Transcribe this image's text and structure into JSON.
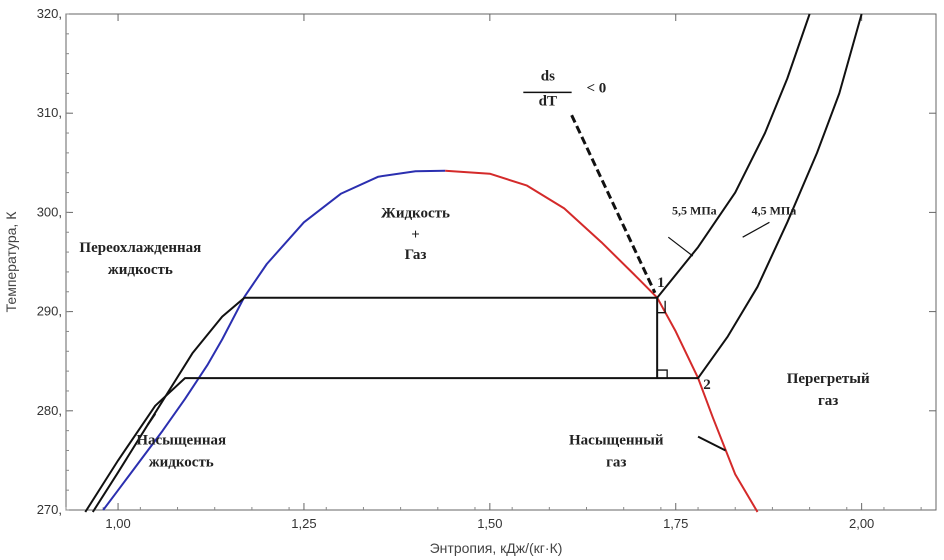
{
  "chart_data": {
    "type": "line",
    "title": "",
    "xlabel": "Энтропия, кДж/(кг·К)",
    "ylabel": "Температура, К",
    "xlim": [
      0.93,
      2.1
    ],
    "ylim": [
      270,
      320
    ],
    "x_ticks": [
      1.0,
      1.25,
      1.5,
      1.75,
      2.0
    ],
    "x_tick_labels": [
      "1,00",
      "1,25",
      "1,50",
      "1,75",
      "2,00"
    ],
    "y_ticks": [
      270,
      280,
      290,
      300,
      310,
      320
    ],
    "y_tick_labels": [
      "270,",
      "280,",
      "290,",
      "300,",
      "310,",
      "320,"
    ],
    "grid": false,
    "series": [
      {
        "name": "Насыщенная жидкость",
        "color": "#2b2fb0",
        "points": [
          [
            0.98,
            270
          ],
          [
            1.0,
            272.0
          ],
          [
            1.03,
            275.0
          ],
          [
            1.06,
            278.0
          ],
          [
            1.09,
            281.2
          ],
          [
            1.12,
            284.6
          ],
          [
            1.14,
            287.2
          ],
          [
            1.17,
            291.5
          ],
          [
            1.2,
            294.8
          ],
          [
            1.25,
            299.0
          ],
          [
            1.3,
            301.9
          ],
          [
            1.35,
            303.6
          ],
          [
            1.4,
            304.15
          ],
          [
            1.44,
            304.2
          ]
        ]
      },
      {
        "name": "Насыщенный газ",
        "color": "#d42a2a",
        "points": [
          [
            1.44,
            304.2
          ],
          [
            1.5,
            303.9
          ],
          [
            1.55,
            302.7
          ],
          [
            1.6,
            300.4
          ],
          [
            1.65,
            297.0
          ],
          [
            1.7,
            293.3
          ],
          [
            1.725,
            291.4
          ],
          [
            1.75,
            288.0
          ],
          [
            1.78,
            283.3
          ],
          [
            1.8,
            279.3
          ],
          [
            1.83,
            273.6
          ],
          [
            1.86,
            269.8
          ]
        ]
      },
      {
        "name": "5,5 МПа",
        "color": "#111111",
        "points": [
          [
            0.966,
            269.8
          ],
          [
            1.0,
            273.8
          ],
          [
            1.05,
            279.8
          ],
          [
            1.1,
            285.8
          ],
          [
            1.14,
            289.5
          ],
          [
            1.17,
            291.4
          ],
          [
            1.725,
            291.4
          ],
          [
            1.78,
            296.5
          ],
          [
            1.83,
            302.0
          ],
          [
            1.87,
            308.0
          ],
          [
            1.9,
            313.5
          ],
          [
            1.93,
            320.0
          ]
        ]
      },
      {
        "name": "4,5 МПа",
        "color": "#111111",
        "points": [
          [
            0.956,
            269.8
          ],
          [
            1.0,
            275.0
          ],
          [
            1.05,
            280.5
          ],
          [
            1.09,
            283.3
          ],
          [
            1.78,
            283.3
          ],
          [
            1.82,
            287.5
          ],
          [
            1.86,
            292.5
          ],
          [
            1.9,
            299.0
          ],
          [
            1.94,
            306.0
          ],
          [
            1.97,
            312.0
          ],
          [
            2.0,
            320.0
          ]
        ]
      }
    ],
    "annotations": [
      {
        "text": "Переохлажденная",
        "x": 1.03,
        "y": 296.0
      },
      {
        "text": "жидкость",
        "x": 1.03,
        "y": 293.8
      },
      {
        "text": "Жидкость",
        "x": 1.4,
        "y": 299.5
      },
      {
        "text": "+",
        "x": 1.4,
        "y": 297.3
      },
      {
        "text": "Газ",
        "x": 1.4,
        "y": 295.3
      },
      {
        "text": "Перегретый",
        "x": 1.955,
        "y": 282.8
      },
      {
        "text": "газ",
        "x": 1.955,
        "y": 280.6
      },
      {
        "text": "Насыщенная",
        "x": 1.085,
        "y": 276.6
      },
      {
        "text": "жидкость",
        "x": 1.085,
        "y": 274.4
      },
      {
        "text": "Насыщенный",
        "x": 1.67,
        "y": 276.6
      },
      {
        "text": "газ",
        "x": 1.67,
        "y": 274.4
      },
      {
        "text": "5,5 МПа",
        "x": 1.745,
        "y": 299.8
      },
      {
        "text": "4,5 МПа",
        "x": 1.852,
        "y": 299.8
      },
      {
        "text": "1",
        "x": 1.725,
        "y": 292.5
      },
      {
        "text": "2",
        "x": 1.787,
        "y": 282.2
      },
      {
        "text": "ds",
        "x": 1.578,
        "y": 313.3
      },
      {
        "text": "dT",
        "x": 1.578,
        "y": 310.8
      },
      {
        "text": "< 0",
        "x": 1.63,
        "y": 312.1
      }
    ]
  }
}
